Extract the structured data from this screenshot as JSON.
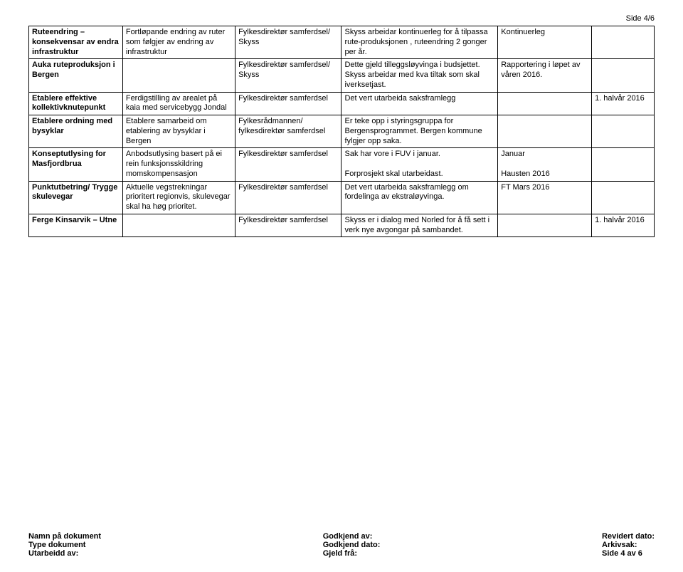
{
  "page_marker": "Side 4/6",
  "rows": [
    {
      "c1": "Ruteendring – konsekvensar av endra infrastruktur",
      "c2": "Fortløpande endring av ruter som følgjer av endring av infrastruktur",
      "c3": "Fylkesdirektør samferdsel/ Skyss",
      "c4": "Skyss arbeidar kontinuerleg for å tilpassa rute-produksjonen , ruteendring 2 gonger per år.",
      "c5": "Kontinuerleg",
      "c6": ""
    },
    {
      "c1": "Auka ruteproduksjon i Bergen",
      "c2": "",
      "c3": "Fylkesdirektør samferdsel/ Skyss",
      "c4": "Dette gjeld tilleggsløyvinga i budsjettet. Skyss arbeidar med kva tiltak som skal iverksetjast.",
      "c5": "Rapportering i løpet av våren 2016.",
      "c6": ""
    },
    {
      "c1": "Etablere effektive kollektivknutepunkt",
      "c2": "Ferdigstilling av arealet på kaia med servicebygg Jondal",
      "c3": "Fylkesdirektør samferdsel",
      "c4": "Det vert utarbeida saksframlegg",
      "c5": "",
      "c6": "1.  halvår 2016"
    },
    {
      "c1": "Etablere ordning med bysyklar",
      "c2": "Etablere samarbeid om etablering av bysyklar i Bergen",
      "c3": "Fylkesrådmannen/ fylkesdirektør samferdsel",
      "c4": "Er teke opp i styringsgruppa for Bergensprogrammet. Bergen kommune fylgjer opp saka.",
      "c5": "",
      "c6": ""
    },
    {
      "c1": "Konseptutlysing for Masfjordbrua",
      "c2": "Anbodsutlysing basert på ei rein funksjonsskildring momskompensasjon",
      "c3": "Fylkesdirektør samferdsel",
      "c4": "Sak har vore i FUV i januar.\n\n  Forprosjekt skal utarbeidast.",
      "c5": "Januar\n\nHausten 2016",
      "c6": ""
    },
    {
      "c1": "Punktutbetring/ Trygge skulevegar",
      "c2": "Aktuelle vegstrekningar prioritert regionvis, skulevegar skal ha høg prioritet.",
      "c3": "Fylkesdirektør samferdsel",
      "c4": "Det vert utarbeida saksframlegg om fordelinga av ekstraløyvinga.",
      "c5": "FT Mars 2016",
      "c6": ""
    },
    {
      "c1": "Ferge Kinsarvik – Utne",
      "c2": "",
      "c3": "Fylkesdirektør samferdsel",
      "c4": "Skyss er i dialog med Norled for å få sett i verk nye avgongar på sambandet.",
      "c5": "",
      "c6": "1.  halvår 2016"
    }
  ],
  "footer": {
    "left": [
      "Namn på dokument",
      "Type dokument",
      "Utarbeidd av:"
    ],
    "center": [
      "Godkjend av:",
      "Godkjend dato:",
      "Gjeld frå:"
    ],
    "right": [
      "Revidert dato:",
      "Arkivsak:",
      "Side 4 av 6"
    ]
  }
}
